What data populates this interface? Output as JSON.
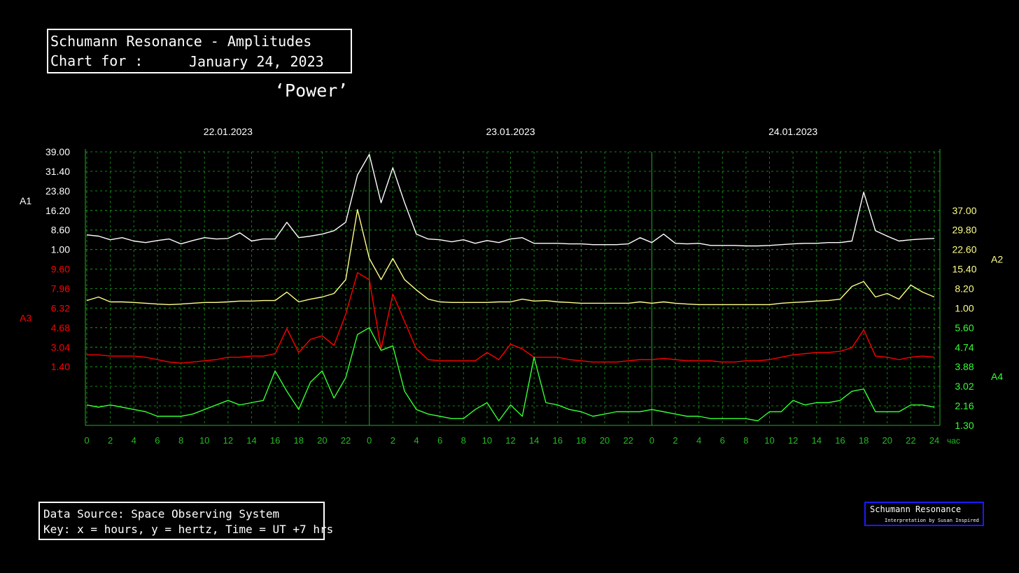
{
  "header": {
    "title": "Schumann Resonance - Amplitudes",
    "chart_for_label": "Chart for :",
    "chart_date": "January 24, 2023",
    "subtitle": "‘Power’"
  },
  "footer": {
    "source": "Data Source: Space Observing System",
    "key": "Key: x = hours, y = hertz, Time = UT +7 hrs"
  },
  "badge": {
    "title": "Schumann Resonance",
    "credit": "Interpretation by Susan Inspired"
  },
  "chart_data": {
    "type": "line",
    "grid": true,
    "day_labels": [
      "22.01.2023",
      "23.01.2023",
      "24.01.2023"
    ],
    "x_unit": "час",
    "xlim": [
      0,
      72
    ],
    "xticks": [
      0,
      2,
      4,
      6,
      8,
      10,
      12,
      14,
      16,
      18,
      20,
      22,
      {
        "value": 24,
        "label": "0"
      },
      {
        "value": 26,
        "label": "2"
      },
      {
        "value": 28,
        "label": "4"
      },
      {
        "value": 30,
        "label": "6"
      },
      {
        "value": 32,
        "label": "8"
      },
      {
        "value": 34,
        "label": "10"
      },
      {
        "value": 36,
        "label": "12"
      },
      {
        "value": 38,
        "label": "14"
      },
      {
        "value": 40,
        "label": "16"
      },
      {
        "value": 42,
        "label": "18"
      },
      {
        "value": 44,
        "label": "20"
      },
      {
        "value": 46,
        "label": "22"
      },
      {
        "value": 48,
        "label": "0"
      },
      {
        "value": 50,
        "label": "2"
      },
      {
        "value": 52,
        "label": "4"
      },
      {
        "value": 54,
        "label": "6"
      },
      {
        "value": 56,
        "label": "8"
      },
      {
        "value": 58,
        "label": "10"
      },
      {
        "value": 60,
        "label": "12"
      },
      {
        "value": 62,
        "label": "14"
      },
      {
        "value": 64,
        "label": "16"
      },
      {
        "value": 66,
        "label": "18"
      },
      {
        "value": 68,
        "label": "20"
      },
      {
        "value": 70,
        "label": "22"
      },
      {
        "value": 72,
        "label": "24"
      }
    ],
    "x": [
      0,
      1,
      2,
      3,
      4,
      5,
      6,
      7,
      8,
      9,
      10,
      11,
      12,
      13,
      14,
      15,
      16,
      17,
      18,
      19,
      20,
      21,
      22,
      23,
      24,
      25,
      26,
      27,
      28,
      29,
      30,
      31,
      32,
      33,
      34,
      35,
      36,
      37,
      38,
      39,
      40,
      41,
      42,
      43,
      44,
      45,
      46,
      47,
      48,
      49,
      50,
      51,
      52,
      53,
      54,
      55,
      56,
      57,
      58,
      59,
      60,
      61,
      62,
      63,
      64,
      65,
      66,
      67,
      68,
      69,
      70,
      71,
      72
    ],
    "series": [
      {
        "name": "A1",
        "color": "#ffffff",
        "axis": "y",
        "ylim": [
          1,
          39
        ],
        "yticks": [
          {
            "value": 1,
            "label": "1.00"
          },
          {
            "value": 8.6,
            "label": "8.60"
          },
          {
            "value": 16.2,
            "label": "16.20"
          },
          {
            "value": 23.8,
            "label": "23.80"
          },
          {
            "value": 31.4,
            "label": "31.40"
          },
          {
            "value": 39,
            "label": "39.00"
          }
        ],
        "values": [
          6.7,
          6.2,
          4.8,
          5.6,
          4.3,
          3.7,
          4.5,
          5.1,
          3.2,
          4.5,
          5.6,
          5.1,
          5.3,
          7.5,
          4.3,
          5.1,
          5.1,
          11.6,
          5.6,
          6.2,
          7.0,
          8.3,
          11.6,
          30,
          38,
          19.2,
          32.8,
          19.2,
          7.0,
          5.1,
          4.8,
          4.0,
          4.8,
          3.4,
          4.5,
          3.7,
          5.1,
          5.6,
          3.4,
          3.4,
          3.4,
          3.2,
          3.2,
          2.9,
          2.9,
          2.9,
          3.2,
          5.6,
          3.7,
          7.0,
          3.4,
          3.2,
          3.4,
          2.6,
          2.6,
          2.6,
          2.4,
          2.4,
          2.6,
          2.9,
          3.2,
          3.4,
          3.4,
          3.7,
          3.7,
          4.3,
          23.3,
          8.3,
          6.2,
          4.3,
          4.8,
          5.1,
          5.3
        ]
      },
      {
        "name": "A2",
        "color": "#ffff88",
        "axis": "y2",
        "ylim": [
          1,
          37
        ],
        "yticks": [
          {
            "value": 1,
            "label": "1.00"
          },
          {
            "value": 8.2,
            "label": "8.20"
          },
          {
            "value": 15.4,
            "label": "15.40"
          },
          {
            "value": 22.6,
            "label": "22.60"
          },
          {
            "value": 29.8,
            "label": "29.80"
          },
          {
            "value": 37,
            "label": "37.00"
          }
        ],
        "values": [
          3.8,
          5.1,
          3.3,
          3.3,
          3.1,
          2.8,
          2.5,
          2.3,
          2.5,
          2.8,
          3.1,
          3.1,
          3.3,
          3.6,
          3.6,
          3.8,
          3.8,
          6.9,
          3.3,
          4.3,
          5.1,
          6.4,
          11.5,
          37.3,
          19.3,
          11.5,
          19.3,
          11.5,
          7.7,
          4.3,
          3.3,
          3.1,
          3.1,
          3.1,
          3.1,
          3.3,
          3.3,
          4.3,
          3.6,
          3.8,
          3.3,
          3.1,
          2.8,
          2.8,
          2.8,
          2.8,
          2.8,
          3.3,
          2.8,
          3.3,
          2.8,
          2.5,
          2.3,
          2.3,
          2.3,
          2.3,
          2.3,
          2.3,
          2.3,
          2.8,
          3.1,
          3.3,
          3.6,
          3.8,
          4.3,
          9.0,
          10.8,
          5.1,
          6.4,
          4.3,
          9.5,
          6.9,
          5.1
        ]
      },
      {
        "name": "A3",
        "color": "#ff0000",
        "axis": "y",
        "ylim": [
          1.4,
          9.6
        ],
        "yticks": [
          {
            "value": 1.4,
            "label": "1.40"
          },
          {
            "value": 3.04,
            "label": "3.04"
          },
          {
            "value": 4.68,
            "label": "4.68"
          },
          {
            "value": 6.32,
            "label": "6.32"
          },
          {
            "value": 7.96,
            "label": "7.96"
          },
          {
            "value": 9.6,
            "label": "9.60"
          }
        ],
        "values": [
          2.4,
          2.4,
          2.3,
          2.3,
          2.3,
          2.2,
          2.0,
          1.8,
          1.7,
          1.8,
          1.9,
          2.0,
          2.2,
          2.2,
          2.3,
          2.3,
          2.5,
          4.6,
          2.6,
          3.7,
          4.0,
          3.2,
          5.8,
          9.3,
          8.7,
          2.9,
          7.5,
          5.2,
          2.9,
          2.0,
          1.9,
          1.9,
          1.9,
          1.9,
          2.6,
          2.0,
          3.3,
          2.9,
          2.2,
          2.2,
          2.2,
          2.0,
          1.9,
          1.8,
          1.8,
          1.8,
          1.9,
          2.0,
          2.0,
          2.1,
          2.0,
          1.9,
          1.9,
          1.9,
          1.8,
          1.8,
          1.9,
          1.9,
          2.0,
          2.2,
          2.4,
          2.5,
          2.6,
          2.6,
          2.7,
          3.0,
          4.5,
          2.3,
          2.2,
          2.0,
          2.2,
          2.3,
          2.2
        ]
      },
      {
        "name": "A4",
        "color": "#33ff33",
        "axis": "y2",
        "ylim": [
          1.3,
          5.6
        ],
        "yticks": [
          {
            "value": 1.3,
            "label": "1.30"
          },
          {
            "value": 2.16,
            "label": "2.16"
          },
          {
            "value": 3.02,
            "label": "3.02"
          },
          {
            "value": 3.88,
            "label": "3.88"
          },
          {
            "value": 4.74,
            "label": "4.74"
          },
          {
            "value": 5.6,
            "label": "5.60"
          }
        ],
        "values": [
          2.2,
          2.1,
          2.2,
          2.1,
          2.0,
          1.9,
          1.7,
          1.7,
          1.7,
          1.8,
          2.0,
          2.2,
          2.4,
          2.2,
          2.3,
          2.4,
          3.7,
          2.8,
          2.0,
          3.2,
          3.7,
          2.5,
          3.4,
          5.3,
          5.6,
          4.6,
          4.8,
          2.8,
          2.0,
          1.8,
          1.7,
          1.6,
          1.6,
          2.0,
          2.3,
          1.5,
          2.2,
          1.7,
          4.3,
          2.3,
          2.2,
          2.0,
          1.9,
          1.7,
          1.8,
          1.9,
          1.9,
          1.9,
          2.0,
          1.9,
          1.8,
          1.7,
          1.7,
          1.6,
          1.6,
          1.6,
          1.6,
          1.5,
          1.9,
          1.9,
          2.4,
          2.2,
          2.3,
          2.3,
          2.4,
          2.8,
          2.9,
          1.9,
          1.9,
          1.9,
          2.2,
          2.2,
          2.1
        ]
      }
    ]
  }
}
